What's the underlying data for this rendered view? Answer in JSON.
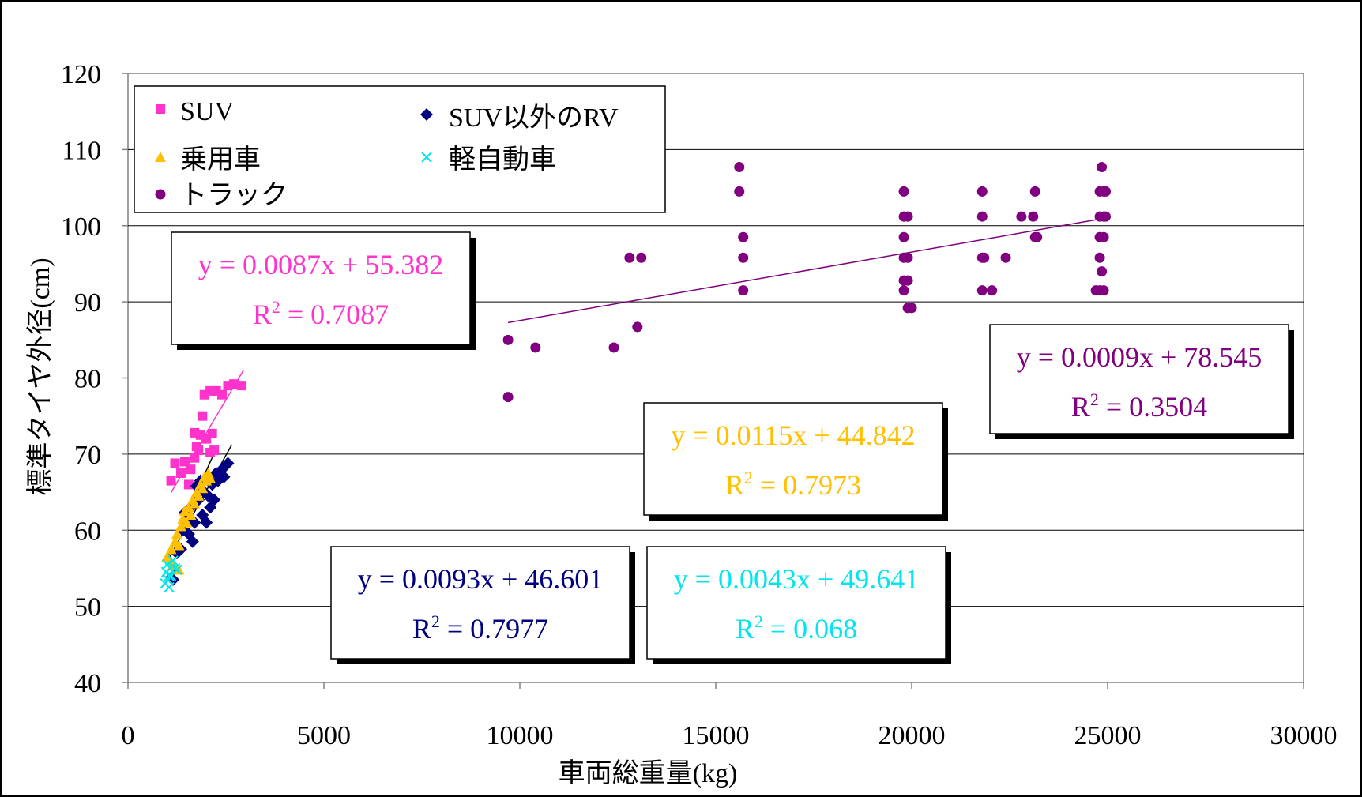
{
  "chart_data": {
    "type": "scatter",
    "xlabel": "車両総重量",
    "xlabel_unit": "(kg)",
    "ylabel": "標準タイヤ外径",
    "ylabel_unit": "(cm)",
    "xlim": [
      0,
      30000
    ],
    "ylim": [
      40,
      120
    ],
    "xticks": [
      0,
      5000,
      10000,
      15000,
      20000,
      25000,
      30000
    ],
    "yticks": [
      40,
      50,
      60,
      70,
      80,
      90,
      100,
      110,
      120
    ],
    "grid": "horizontal",
    "legend_position": "top-left",
    "series": [
      {
        "name": "SUV",
        "marker": "square",
        "color": "#ff33cc",
        "points": [
          [
            1100,
            66.5
          ],
          [
            1200,
            68.8
          ],
          [
            1350,
            67.5
          ],
          [
            1450,
            69
          ],
          [
            1550,
            66
          ],
          [
            1600,
            68
          ],
          [
            1700,
            69.5
          ],
          [
            1700,
            72.8
          ],
          [
            1750,
            71
          ],
          [
            1800,
            70.5
          ],
          [
            1850,
            72.5
          ],
          [
            1900,
            75
          ],
          [
            1950,
            77.8
          ],
          [
            2000,
            72
          ],
          [
            2100,
            78.3
          ],
          [
            2100,
            70.2
          ],
          [
            2150,
            72.7
          ],
          [
            2200,
            70.5
          ],
          [
            2250,
            78.3
          ],
          [
            2400,
            77.8
          ],
          [
            2550,
            79
          ],
          [
            2700,
            79.2
          ],
          [
            2900,
            79
          ]
        ],
        "trend": {
          "slope": 0.0087,
          "intercept": 55.382,
          "x_range": [
            1100,
            2950
          ],
          "equation": "y = 0.0087x + 55.382",
          "r2_prefix": "R",
          "r2_exp": "2",
          "r2_value": " = 0.7087"
        }
      },
      {
        "name": "SUV以外のRV",
        "marker": "diamond",
        "color": "#000080",
        "points": [
          [
            1150,
            53.5
          ],
          [
            1250,
            57
          ],
          [
            1350,
            57.5
          ],
          [
            1400,
            60
          ],
          [
            1450,
            62.3
          ],
          [
            1500,
            61.5
          ],
          [
            1550,
            59.5
          ],
          [
            1600,
            63
          ],
          [
            1650,
            58.5
          ],
          [
            1700,
            61
          ],
          [
            1750,
            65.8
          ],
          [
            1800,
            64
          ],
          [
            1850,
            66.5
          ],
          [
            1900,
            62
          ],
          [
            1950,
            65
          ],
          [
            2000,
            61
          ],
          [
            2050,
            64.5
          ],
          [
            2100,
            63
          ],
          [
            2150,
            66
          ],
          [
            2200,
            64
          ],
          [
            2250,
            67.5
          ],
          [
            2300,
            66.5
          ],
          [
            2400,
            68
          ],
          [
            2450,
            67
          ],
          [
            2550,
            68.8
          ]
        ],
        "trend": {
          "slope": 0.0093,
          "intercept": 46.601,
          "x_range": [
            1050,
            2650
          ],
          "equation": "y = 0.0093x + 46.601",
          "r2_prefix": "R",
          "r2_exp": "2",
          "r2_value": " = 0.7977"
        }
      },
      {
        "name": "乗用車",
        "marker": "triangle",
        "color": "#ffc000",
        "points": [
          [
            1000,
            56.5
          ],
          [
            1100,
            57.5
          ],
          [
            1150,
            55.5
          ],
          [
            1200,
            58.5
          ],
          [
            1250,
            59.5
          ],
          [
            1300,
            58
          ],
          [
            1350,
            60.5
          ],
          [
            1400,
            61.5
          ],
          [
            1450,
            62.5
          ],
          [
            1500,
            61
          ],
          [
            1550,
            63
          ],
          [
            1600,
            62
          ],
          [
            1650,
            64
          ],
          [
            1700,
            63.5
          ],
          [
            1750,
            65
          ],
          [
            1800,
            64.5
          ],
          [
            1850,
            66
          ],
          [
            1900,
            65.5
          ],
          [
            1950,
            67
          ],
          [
            2000,
            66.5
          ],
          [
            2050,
            67.5
          ],
          [
            2100,
            66.8
          ],
          [
            1300,
            54.8
          ]
        ],
        "trend": {
          "slope": 0.0115,
          "intercept": 44.842,
          "x_range": [
            1000,
            2150
          ],
          "equation": "y = 0.0115x + 44.842",
          "r2_prefix": "R",
          "r2_exp": "2",
          "r2_value": " = 0.7973"
        }
      },
      {
        "name": "軽自動車",
        "marker": "x",
        "color": "#00e5ee",
        "points": [
          [
            950,
            53
          ],
          [
            980,
            54.5
          ],
          [
            1000,
            55.5
          ],
          [
            1020,
            53.5
          ],
          [
            1050,
            52.5
          ],
          [
            1080,
            55
          ],
          [
            1100,
            54
          ],
          [
            1150,
            56
          ],
          [
            1200,
            55
          ],
          [
            1250,
            54.8
          ],
          [
            1050,
            54
          ]
        ],
        "trend": {
          "slope": 0.0043,
          "intercept": 49.641,
          "x_range": [
            950,
            1250
          ],
          "equation": "y = 0.0043x + 49.641",
          "r2_prefix": "R",
          "r2_exp": "2",
          "r2_value": " = 0.068"
        }
      },
      {
        "name": "トラック",
        "marker": "circle",
        "color": "#800080",
        "points": [
          [
            9700,
            85
          ],
          [
            9700,
            77.5
          ],
          [
            10400,
            84
          ],
          [
            12400,
            84
          ],
          [
            12800,
            95.8
          ],
          [
            13000,
            86.7
          ],
          [
            13100,
            95.8
          ],
          [
            15600,
            107.7
          ],
          [
            15600,
            104.5
          ],
          [
            15700,
            98.5
          ],
          [
            15700,
            95.8
          ],
          [
            15700,
            91.5
          ],
          [
            19800,
            104.5
          ],
          [
            19800,
            101.2
          ],
          [
            19800,
            98.5
          ],
          [
            19800,
            95.8
          ],
          [
            19800,
            92.8
          ],
          [
            19800,
            91.5
          ],
          [
            19900,
            101.2
          ],
          [
            19900,
            95.8
          ],
          [
            19900,
            92.8
          ],
          [
            19900,
            89.2
          ],
          [
            20000,
            89.2
          ],
          [
            21800,
            104.5
          ],
          [
            21800,
            101.2
          ],
          [
            21800,
            95.8
          ],
          [
            21800,
            91.5
          ],
          [
            21850,
            95.8
          ],
          [
            22050,
            91.5
          ],
          [
            22400,
            95.8
          ],
          [
            22800,
            101.2
          ],
          [
            23100,
            101.2
          ],
          [
            23150,
            104.5
          ],
          [
            23150,
            98.5
          ],
          [
            23200,
            98.5
          ],
          [
            24700,
            91.5
          ],
          [
            24800,
            91.5
          ],
          [
            24800,
            104.5
          ],
          [
            24800,
            101.2
          ],
          [
            24800,
            98.5
          ],
          [
            24800,
            95.8
          ],
          [
            24850,
            107.7
          ],
          [
            24850,
            94
          ],
          [
            24900,
            104.5
          ],
          [
            24900,
            101.2
          ],
          [
            24900,
            98.5
          ],
          [
            24900,
            91.5
          ],
          [
            24950,
            104.5
          ],
          [
            24950,
            101.2
          ]
        ],
        "trend": {
          "slope": 0.0009,
          "intercept": 78.545,
          "x_range": [
            9700,
            24900
          ],
          "equation": "y = 0.0009x + 78.545",
          "r2_prefix": "R",
          "r2_exp": "2",
          "r2_value": " = 0.3504"
        }
      }
    ]
  }
}
